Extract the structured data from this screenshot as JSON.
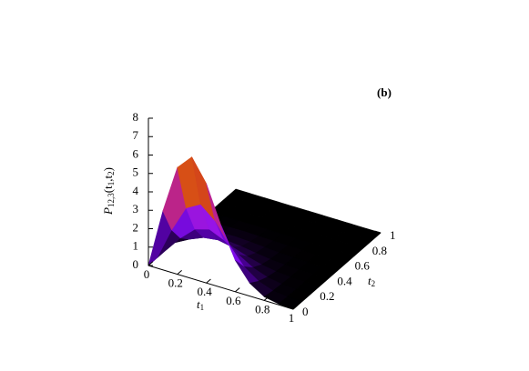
{
  "chart_data": {
    "type": "surface3d",
    "title": "(b)",
    "zlabel": [
      "P",
      "12,3",
      "(t",
      "1",
      ",t",
      "2",
      ")"
    ],
    "xlabel": [
      "t",
      "1"
    ],
    "ylabel": [
      "t",
      "2"
    ],
    "x": [
      0,
      0.1,
      0.2,
      0.3,
      0.4,
      0.5,
      0.6,
      0.7,
      0.8,
      0.9,
      1
    ],
    "y": [
      0,
      0.1,
      0.2,
      0.3,
      0.4,
      0.5,
      0.6,
      0.7,
      0.8,
      0.9,
      1
    ],
    "z": [
      [
        0,
        3.2,
        5.8,
        6.6,
        5.4,
        3.4,
        1.7,
        0.7,
        0.2,
        0.05,
        0
      ],
      [
        0,
        1.76,
        3.19,
        3.63,
        2.97,
        1.87,
        0.94,
        0.39,
        0.11,
        0.03,
        0
      ],
      [
        0,
        0.9,
        1.62,
        1.85,
        1.51,
        0.95,
        0.48,
        0.2,
        0.06,
        0.01,
        0
      ],
      [
        0,
        0.42,
        0.75,
        0.86,
        0.7,
        0.44,
        0.22,
        0.09,
        0.03,
        0.01,
        0
      ],
      [
        0,
        0.19,
        0.35,
        0.4,
        0.32,
        0.2,
        0.1,
        0.04,
        0.01,
        0,
        0
      ],
      [
        0,
        0.1,
        0.17,
        0.2,
        0.16,
        0.1,
        0.05,
        0.02,
        0.01,
        0,
        0
      ],
      [
        0,
        0.03,
        0.06,
        0.07,
        0.05,
        0.03,
        0.02,
        0.01,
        0,
        0,
        0
      ],
      [
        0,
        0,
        0,
        0,
        0,
        0,
        0,
        0,
        0,
        0,
        0
      ],
      [
        0,
        0,
        0,
        0,
        0,
        0,
        0,
        0,
        0,
        0,
        0
      ],
      [
        0,
        0,
        0,
        0,
        0,
        0,
        0,
        0,
        0,
        0,
        0
      ],
      [
        0,
        0,
        0,
        0,
        0,
        0,
        0,
        0,
        0,
        0,
        0
      ]
    ],
    "xlim": [
      0,
      1
    ],
    "ylim": [
      0,
      1
    ],
    "zlim": [
      0,
      8
    ],
    "xticks": [
      0,
      0.2,
      0.4,
      0.6,
      0.8,
      1
    ],
    "yticks": [
      0,
      0.2,
      0.4,
      0.6,
      0.8,
      1
    ],
    "zticks": [
      0,
      1,
      2,
      3,
      4,
      5,
      6,
      7,
      8
    ],
    "palette": [
      "#000000",
      "#4a0096",
      "#8c10ff",
      "#b8209a",
      "#d03a20",
      "#e67a00",
      "#f2b400"
    ]
  }
}
